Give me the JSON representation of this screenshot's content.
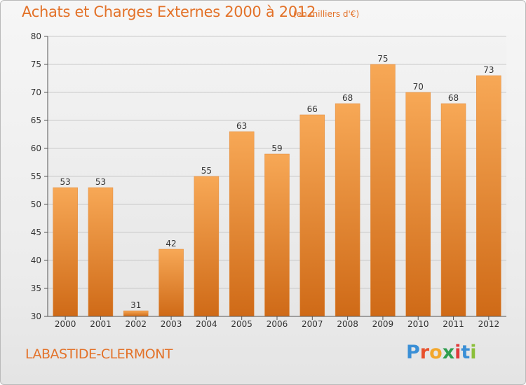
{
  "title": "Achats et Charges Externes 2000 à 2012",
  "subtitle": "(en milliers d'€)",
  "commune": "LABASTIDE-CLERMONT",
  "brand": {
    "letters": [
      "P",
      "r",
      "o",
      "x",
      "i",
      "t",
      "i"
    ],
    "colors": [
      "#3a8fd6",
      "#e8502c",
      "#f3a72b",
      "#2f9e4f",
      "#e03a3a",
      "#3a8fd6",
      "#8bbf3a"
    ]
  },
  "colors": {
    "bar": "#f08a2f",
    "accent": "#e37229"
  },
  "chart_data": {
    "type": "bar",
    "categories": [
      "2000",
      "2001",
      "2002",
      "2003",
      "2004",
      "2005",
      "2006",
      "2007",
      "2008",
      "2009",
      "2010",
      "2011",
      "2012"
    ],
    "values": [
      53,
      53,
      31,
      42,
      55,
      63,
      59,
      66,
      68,
      75,
      70,
      68,
      73
    ],
    "ylim": [
      30,
      80
    ],
    "yticks": [
      30,
      35,
      40,
      45,
      50,
      55,
      60,
      65,
      70,
      75,
      80
    ],
    "grid": true
  }
}
